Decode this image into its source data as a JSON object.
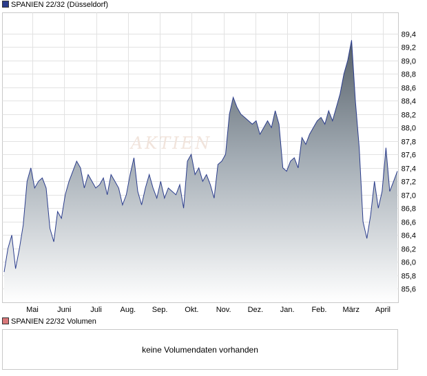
{
  "legend_price": {
    "label": "SPANIEN 22/32 (Düsseldorf)",
    "color": "#2a3c8c"
  },
  "legend_volume": {
    "label": "SPANIEN 22/32 Volumen",
    "color": "#d9787a"
  },
  "volume_message": "keine Volumendaten vorhanden",
  "watermark": "AKTIEN",
  "chart_data": {
    "type": "area",
    "ylim": [
      85.4,
      89.6
    ],
    "y_ticks": [
      "85,6",
      "85,8",
      "86,0",
      "86,2",
      "86,4",
      "86,6",
      "86,8",
      "87,0",
      "87,2",
      "87,4",
      "87,6",
      "87,8",
      "88,0",
      "88,2",
      "88,4",
      "88,6",
      "88,8",
      "89,0",
      "89,2",
      "89,4"
    ],
    "x_ticks": [
      "Mai",
      "Juni",
      "Juli",
      "Aug.",
      "Sep.",
      "Okt.",
      "Nov.",
      "Dez.",
      "Jan.",
      "Feb.",
      "März",
      "April"
    ],
    "line_color": "#2a3c8c",
    "grid": true,
    "series": [
      {
        "values": [
          85.85,
          86.2,
          86.4,
          85.9,
          86.2,
          86.55,
          87.2,
          87.4,
          87.1,
          87.2,
          87.25,
          87.1,
          86.5,
          86.3,
          86.75,
          86.65,
          87.0,
          87.2,
          87.35,
          87.5,
          87.4,
          87.1,
          87.3,
          87.2,
          87.1,
          87.15,
          87.25,
          87.0,
          87.3,
          87.2,
          87.1,
          86.85,
          87.0,
          87.3,
          87.55,
          87.05,
          86.85,
          87.1,
          87.3,
          87.1,
          86.95,
          87.2,
          86.95,
          87.1,
          87.05,
          87.0,
          87.15,
          86.8,
          87.5,
          87.6,
          87.3,
          87.4,
          87.2,
          87.3,
          87.15,
          86.95,
          87.45,
          87.5,
          87.6,
          88.2,
          88.45,
          88.3,
          88.2,
          88.15,
          88.1,
          88.05,
          88.1,
          87.9,
          88.0,
          88.1,
          88.0,
          88.25,
          88.05,
          87.4,
          87.35,
          87.5,
          87.55,
          87.4,
          87.85,
          87.75,
          87.9,
          88.0,
          88.1,
          88.15,
          88.05,
          88.25,
          88.1,
          88.3,
          88.5,
          88.8,
          89.0,
          89.3,
          88.4,
          87.7,
          86.6,
          86.35,
          86.7,
          87.2,
          86.8,
          87.05,
          87.7,
          87.05,
          87.2,
          87.35
        ]
      }
    ]
  }
}
